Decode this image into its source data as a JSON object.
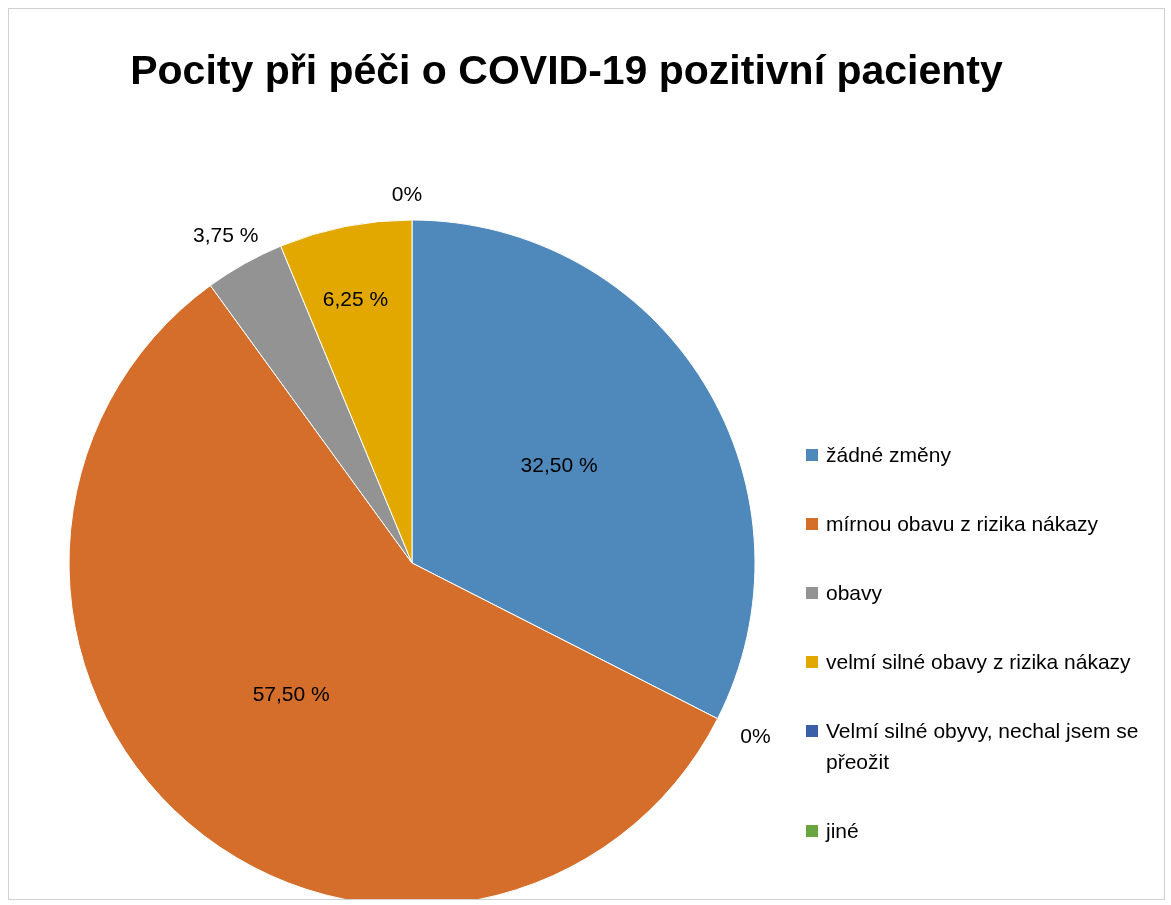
{
  "chart_data": {
    "type": "pie",
    "title": "Pocity při péči o COVID-19 pozitivní pacienty",
    "categories": [
      "žádné změny",
      "mírnou obavu z rizika nákazy",
      "obavy",
      "velmí silné obavy z rizika nákazy",
      "Velmí silné obyvy, nechal jsem se přeožit",
      "jiné"
    ],
    "values": [
      32.5,
      57.5,
      3.75,
      6.25,
      0,
      0
    ],
    "colors": [
      "#4f88bb",
      "#d46e2a",
      "#939393",
      "#e2a800",
      "#3a5fa8",
      "#6aa541"
    ],
    "value_labels": [
      "32,50 %",
      "57,50 %",
      "3,75 %",
      "6,25 %",
      "0%",
      "0%"
    ],
    "legend": "right"
  }
}
